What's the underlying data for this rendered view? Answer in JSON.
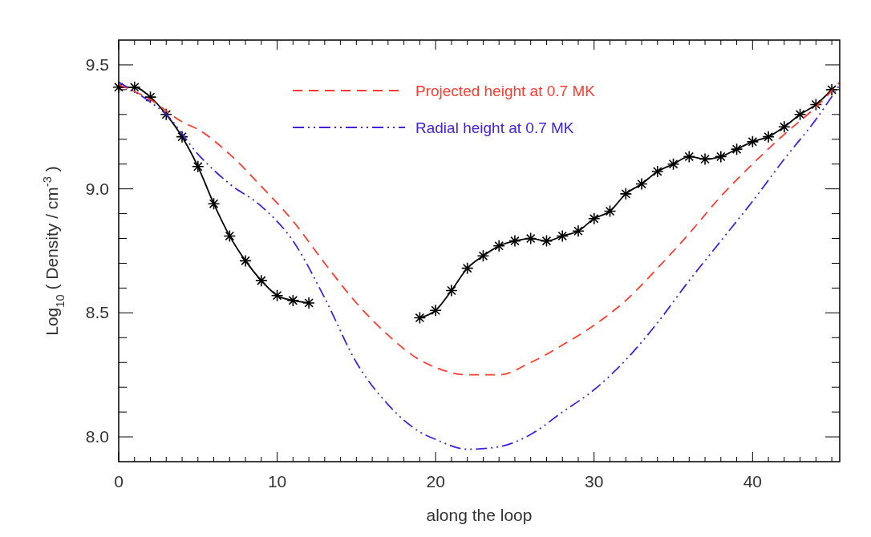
{
  "chart_data": {
    "type": "line",
    "xlabel": "along the loop",
    "ylabel": "Log$_{10}$ ( Density / cm$^{-3}$ )",
    "xlim": [
      0,
      45.5
    ],
    "ylim": [
      7.9,
      9.6
    ],
    "xticks": [
      0,
      {
        "value": 1,
        "label": null
      },
      {
        "value": 2,
        "label": null
      },
      {
        "value": 3,
        "label": null
      },
      {
        "value": 4,
        "label": null
      },
      {
        "value": 5,
        "label": null
      },
      {
        "value": 6,
        "label": null
      },
      {
        "value": 7,
        "label": null
      },
      {
        "value": 8,
        "label": null
      },
      {
        "value": 9,
        "label": null
      },
      10,
      {
        "value": 11,
        "label": null
      },
      {
        "value": 12,
        "label": null
      },
      {
        "value": 13,
        "label": null
      },
      {
        "value": 14,
        "label": null
      },
      {
        "value": 15,
        "label": null
      },
      {
        "value": 16,
        "label": null
      },
      {
        "value": 17,
        "label": null
      },
      {
        "value": 18,
        "label": null
      },
      {
        "value": 19,
        "label": null
      },
      20,
      {
        "value": 21,
        "label": null
      },
      {
        "value": 22,
        "label": null
      },
      {
        "value": 23,
        "label": null
      },
      {
        "value": 24,
        "label": null
      },
      {
        "value": 25,
        "label": null
      },
      {
        "value": 26,
        "label": null
      },
      {
        "value": 27,
        "label": null
      },
      {
        "value": 28,
        "label": null
      },
      {
        "value": 29,
        "label": null
      },
      30,
      {
        "value": 31,
        "label": null
      },
      {
        "value": 32,
        "label": null
      },
      {
        "value": 33,
        "label": null
      },
      {
        "value": 34,
        "label": null
      },
      {
        "value": 35,
        "label": null
      },
      {
        "value": 36,
        "label": null
      },
      {
        "value": 37,
        "label": null
      },
      {
        "value": 38,
        "label": null
      },
      {
        "value": 39,
        "label": null
      },
      40,
      {
        "value": 41,
        "label": null
      },
      {
        "value": 42,
        "label": null
      },
      {
        "value": 43,
        "label": null
      },
      {
        "value": 44,
        "label": null
      },
      {
        "value": 45,
        "label": null
      }
    ],
    "yticks": [
      {
        "value": 8,
        "label": "8.0"
      },
      {
        "value": 8.1,
        "label": null
      },
      {
        "value": 8.2,
        "label": null
      },
      {
        "value": 8.3,
        "label": null
      },
      {
        "value": 8.4,
        "label": null
      },
      {
        "value": 8.5,
        "label": "8.5"
      },
      {
        "value": 8.6,
        "label": null
      },
      {
        "value": 8.7,
        "label": null
      },
      {
        "value": 8.8,
        "label": null
      },
      {
        "value": 8.9,
        "label": null
      },
      {
        "value": 9,
        "label": "9.0"
      },
      {
        "value": 9.1,
        "label": null
      },
      {
        "value": 9.2,
        "label": null
      },
      {
        "value": 9.3,
        "label": null
      },
      {
        "value": 9.4,
        "label": null
      },
      {
        "value": 9.5,
        "label": "9.5"
      }
    ],
    "grid": false,
    "legend": "top",
    "series": [
      {
        "color": "#000000",
        "marker": "cross",
        "line_style": "solid",
        "x": [
          0,
          1,
          2,
          3,
          4,
          5,
          6,
          7,
          8,
          9,
          10,
          11,
          12,
          19,
          20,
          21,
          22,
          23,
          24,
          25,
          26,
          27,
          28,
          29,
          30,
          31,
          32,
          33,
          34,
          35,
          36,
          37,
          38,
          39,
          40,
          41,
          42,
          43,
          44,
          45
        ],
        "values": [
          9.41,
          9.41,
          9.37,
          9.3,
          9.21,
          9.09,
          8.94,
          8.81,
          8.71,
          8.63,
          8.57,
          8.55,
          8.54,
          8.48,
          8.51,
          8.59,
          8.68,
          8.73,
          8.77,
          8.79,
          8.8,
          8.79,
          8.81,
          8.83,
          8.88,
          8.91,
          8.98,
          9.02,
          9.07,
          9.1,
          9.13,
          9.12,
          9.13,
          9.16,
          9.19,
          9.21,
          9.25,
          9.3,
          9.34,
          9.4
        ]
      },
      {
        "name": "Projected height at 0.7 MK",
        "color": "#ff3b2f",
        "marker": "none",
        "line_style": "dashed",
        "x": [
          0,
          2,
          4,
          5,
          7,
          9,
          11,
          13,
          15,
          17,
          19,
          20,
          22,
          24,
          26,
          28,
          30,
          32,
          34,
          36,
          38,
          40,
          42,
          44,
          45.5
        ],
        "values": [
          9.42,
          9.36,
          9.27,
          9.24,
          9.14,
          9.01,
          8.87,
          8.7,
          8.54,
          8.41,
          8.31,
          8.28,
          8.25,
          8.25,
          8.3,
          8.37,
          8.45,
          8.55,
          8.68,
          8.82,
          8.97,
          9.1,
          9.22,
          9.33,
          9.43
        ]
      },
      {
        "name": "Radial height at 0.7 MK",
        "color": "#4422dd",
        "marker": "none",
        "line_style": "dashdotdot",
        "x": [
          0,
          2,
          3,
          5,
          7,
          9,
          11,
          13,
          15,
          17,
          19,
          20,
          22,
          24,
          26,
          28,
          30,
          32,
          34,
          36,
          38,
          40,
          42,
          44,
          45.5
        ],
        "values": [
          9.43,
          9.35,
          9.3,
          9.14,
          9.02,
          8.93,
          8.79,
          8.56,
          8.3,
          8.13,
          8.02,
          7.99,
          7.95,
          7.96,
          8.01,
          8.1,
          8.19,
          8.31,
          8.46,
          8.63,
          8.79,
          8.95,
          9.12,
          9.28,
          9.42
        ]
      }
    ]
  }
}
